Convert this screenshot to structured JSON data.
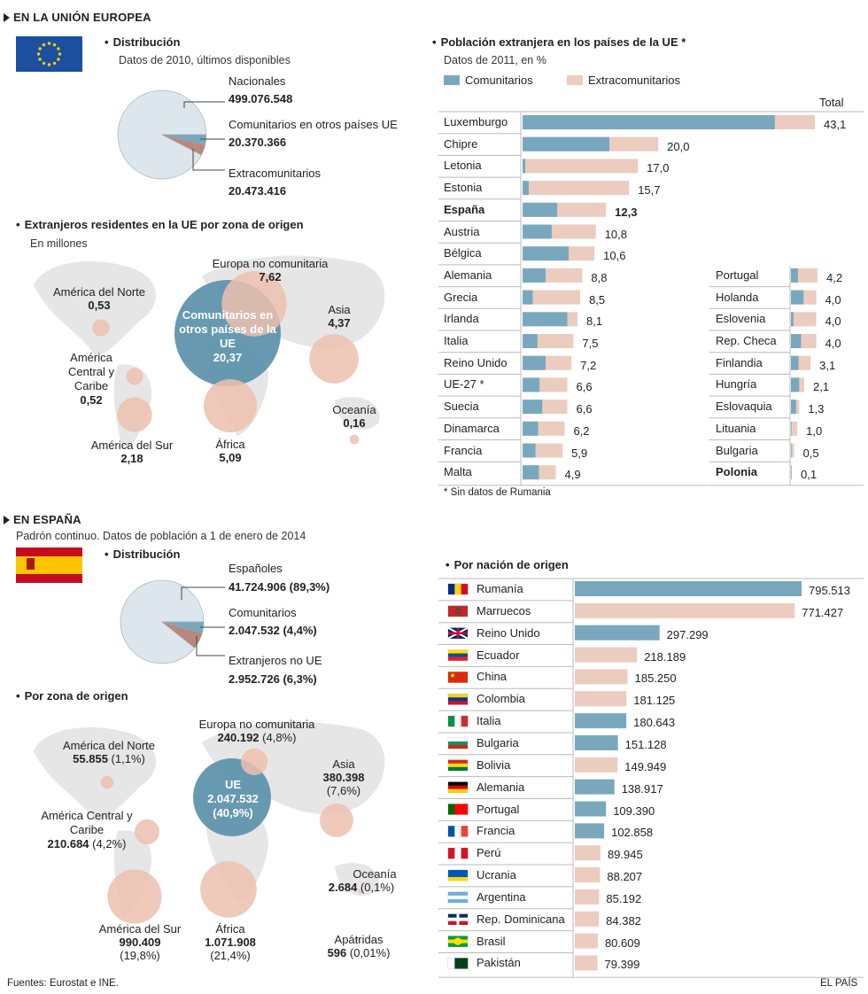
{
  "colors": {
    "comunitarios": "#79a8be",
    "extracomunitarios": "#ecccbf",
    "pie_main": "#dde6ec",
    "pie_dark": "#b9887a",
    "map": "#e6e6e6",
    "circle_blue": "#5f93ad",
    "circle_pink": "#ecbfae"
  },
  "eu": {
    "section_title": "EN LA UNIÓN EUROPEA",
    "flag_icon": "eu-flag-icon",
    "distribution": {
      "title": "Distribución",
      "subtitle": "Datos de 2010, últimos disponibles",
      "labels": [
        {
          "name": "Nacionales",
          "value": "499.076.548"
        },
        {
          "name": "Comunitarios en otros países UE",
          "value": "20.370.366"
        },
        {
          "name": "Extracomunitarios",
          "value": "20.473.416"
        }
      ],
      "slices": [
        499.076548,
        20.370366,
        20.473416
      ]
    },
    "residents": {
      "title": "Extranjeros residentes en la UE por zona de origen",
      "subtitle": "En millones",
      "zones": [
        {
          "name": "Comunitarios en otros países de la UE",
          "value": "20,37",
          "num": 20.37
        },
        {
          "name": "Europa no comunitaria",
          "value": "7,62",
          "num": 7.62
        },
        {
          "name": "América del Norte",
          "value": "0,53",
          "num": 0.53
        },
        {
          "name": "Asia",
          "value": "4,37",
          "num": 4.37
        },
        {
          "name": "América Central y Caribe",
          "value": "0,52",
          "num": 0.52
        },
        {
          "name": "Oceanía",
          "value": "0,16",
          "num": 0.16
        },
        {
          "name": "América del Sur",
          "value": "2,18",
          "num": 2.18
        },
        {
          "name": "África",
          "value": "5,09",
          "num": 5.09
        }
      ]
    }
  },
  "chart_data": [
    {
      "type": "bar",
      "title": "Población extranjera en los países de la UE *",
      "subtitle": "Datos de 2011, en %",
      "legend": [
        "Comunitarios",
        "Extracomunitarios"
      ],
      "total_label": "Total",
      "footnote": "* Sin datos de Rumania",
      "left_column": [
        {
          "country": "Luxemburgo",
          "total": "43,1",
          "value": 43.1,
          "comunitarios": 37.2
        },
        {
          "country": "Chipre",
          "total": "20,0",
          "value": 20.0,
          "comunitarios": 12.8
        },
        {
          "country": "Letonia",
          "total": "17,0",
          "value": 17.0,
          "comunitarios": 0.4
        },
        {
          "country": "Estonia",
          "total": "15,7",
          "value": 15.7,
          "comunitarios": 0.9
        },
        {
          "country": "España",
          "total": "12,3",
          "value": 12.3,
          "comunitarios": 5.1,
          "highlight": true
        },
        {
          "country": "Austria",
          "total": "10,8",
          "value": 10.8,
          "comunitarios": 4.3
        },
        {
          "country": "Bélgica",
          "total": "10,6",
          "value": 10.6,
          "comunitarios": 6.8
        },
        {
          "country": "Alemania",
          "total": "8,8",
          "value": 8.8,
          "comunitarios": 3.4
        },
        {
          "country": "Grecia",
          "total": "8,5",
          "value": 8.5,
          "comunitarios": 1.5
        },
        {
          "country": "Irlanda",
          "total": "8,1",
          "value": 8.1,
          "comunitarios": 6.6
        },
        {
          "country": "Italia",
          "total": "7,5",
          "value": 7.5,
          "comunitarios": 2.2
        },
        {
          "country": "Reino Unido",
          "total": "7,2",
          "value": 7.2,
          "comunitarios": 3.4
        },
        {
          "country": "UE-27 *",
          "total": "6,6",
          "value": 6.6,
          "comunitarios": 2.5
        },
        {
          "country": "Suecia",
          "total": "6,6",
          "value": 6.6,
          "comunitarios": 2.9
        },
        {
          "country": "Dinamarca",
          "total": "6,2",
          "value": 6.2,
          "comunitarios": 2.3
        },
        {
          "country": "Francia",
          "total": "5,9",
          "value": 5.9,
          "comunitarios": 1.9
        },
        {
          "country": "Malta",
          "total": "4,9",
          "value": 4.9,
          "comunitarios": 2.4
        }
      ],
      "right_column": [
        {
          "country": "Portugal",
          "total": "4,2",
          "value": 4.2,
          "comunitarios": 1.1
        },
        {
          "country": "Holanda",
          "total": "4,0",
          "value": 4.0,
          "comunitarios": 2.0
        },
        {
          "country": "Eslovenia",
          "total": "4,0",
          "value": 4.0,
          "comunitarios": 0.4
        },
        {
          "country": "Rep. Checa",
          "total": "4,0",
          "value": 4.0,
          "comunitarios": 1.6
        },
        {
          "country": "Finlandia",
          "total": "3,1",
          "value": 3.1,
          "comunitarios": 1.2
        },
        {
          "country": "Hungría",
          "total": "2,1",
          "value": 2.1,
          "comunitarios": 1.3
        },
        {
          "country": "Eslovaquia",
          "total": "1,3",
          "value": 1.3,
          "comunitarios": 0.8
        },
        {
          "country": "Lituania",
          "total": "1,0",
          "value": 1.0,
          "comunitarios": 0.1
        },
        {
          "country": "Bulgaria",
          "total": "0,5",
          "value": 0.5,
          "comunitarios": 0.1
        },
        {
          "country": "Polonia",
          "total": "0,1",
          "value": 0.1,
          "comunitarios": 0.05,
          "highlight": true
        }
      ]
    },
    {
      "type": "bar",
      "title": "Por nación de origen",
      "countries": [
        {
          "country": "Rumanía",
          "value_text": "795.513",
          "value": 795513,
          "group": "eu",
          "flag": "romania-flag-icon"
        },
        {
          "country": "Marruecos",
          "value_text": "771.427",
          "value": 771427,
          "group": "non-eu",
          "flag": "morocco-flag-icon"
        },
        {
          "country": "Reino Unido",
          "value_text": "297.299",
          "value": 297299,
          "group": "eu",
          "flag": "uk-flag-icon"
        },
        {
          "country": "Ecuador",
          "value_text": "218.189",
          "value": 218189,
          "group": "non-eu",
          "flag": "ecuador-flag-icon"
        },
        {
          "country": "China",
          "value_text": "185.250",
          "value": 185250,
          "group": "non-eu",
          "flag": "china-flag-icon"
        },
        {
          "country": "Colombia",
          "value_text": "181.125",
          "value": 181125,
          "group": "non-eu",
          "flag": "colombia-flag-icon"
        },
        {
          "country": "Italia",
          "value_text": "180.643",
          "value": 180643,
          "group": "eu",
          "flag": "italy-flag-icon"
        },
        {
          "country": "Bulgaria",
          "value_text": "151.128",
          "value": 151128,
          "group": "eu",
          "flag": "bulgaria-flag-icon"
        },
        {
          "country": "Bolivia",
          "value_text": "149.949",
          "value": 149949,
          "group": "non-eu",
          "flag": "bolivia-flag-icon"
        },
        {
          "country": "Alemania",
          "value_text": "138.917",
          "value": 138917,
          "group": "eu",
          "flag": "germany-flag-icon"
        },
        {
          "country": "Portugal",
          "value_text": "109.390",
          "value": 109390,
          "group": "eu",
          "flag": "portugal-flag-icon"
        },
        {
          "country": "Francia",
          "value_text": "102.858",
          "value": 102858,
          "group": "eu",
          "flag": "france-flag-icon"
        },
        {
          "country": "Perú",
          "value_text": "89.945",
          "value": 89945,
          "group": "non-eu",
          "flag": "peru-flag-icon"
        },
        {
          "country": "Ucrania",
          "value_text": "88.207",
          "value": 88207,
          "group": "non-eu",
          "flag": "ukraine-flag-icon"
        },
        {
          "country": "Argentina",
          "value_text": "85.192",
          "value": 85192,
          "group": "non-eu",
          "flag": "argentina-flag-icon"
        },
        {
          "country": "Rep. Dominicana",
          "value_text": "84.382",
          "value": 84382,
          "group": "non-eu",
          "flag": "dominican-flag-icon"
        },
        {
          "country": "Brasil",
          "value_text": "80.609",
          "value": 80609,
          "group": "non-eu",
          "flag": "brazil-flag-icon"
        },
        {
          "country": "Pakistán",
          "value_text": "79.399",
          "value": 79399,
          "group": "non-eu",
          "flag": "pakistan-flag-icon"
        }
      ]
    }
  ],
  "es": {
    "section_title": "EN ESPAÑA",
    "subtitle": "Padrón continuo. Datos de población a 1 de enero de 2014",
    "flag_icon": "spain-flag-icon",
    "distribution": {
      "title": "Distribución",
      "labels": [
        {
          "name": "Españoles",
          "value": "41.724.906 (89,3%)"
        },
        {
          "name": "Comunitarios",
          "value": "2.047.532 (4,4%)"
        },
        {
          "name": "Extranjeros no UE",
          "value": "2.952.726 (6,3%)"
        }
      ],
      "slices": [
        89.3,
        4.4,
        6.3
      ]
    },
    "zones": {
      "title": "Por zona de origen",
      "items": [
        {
          "name": "UE",
          "value": "2.047.532",
          "pct": "(40,9%)",
          "num": 2047532
        },
        {
          "name": "Europa no comunitaria",
          "value": "240.192",
          "pct": "(4,8%)",
          "num": 240192
        },
        {
          "name": "América del Norte",
          "value": "55.855",
          "pct": "(1,1%)",
          "num": 55855
        },
        {
          "name": "Asia",
          "value": "380.398",
          "pct": "(7,6%)",
          "num": 380398
        },
        {
          "name": "América Central y Caribe",
          "value": "210.684",
          "pct": "(4,2%)",
          "num": 210684
        },
        {
          "name": "Oceanía",
          "value": "2.684",
          "pct": "(0,1%)",
          "num": 2684
        },
        {
          "name": "América del Sur",
          "value": "990.409",
          "pct": "(19,8%)",
          "num": 990409
        },
        {
          "name": "África",
          "value": "1.071.908",
          "pct": "(21,4%)",
          "num": 1071908
        },
        {
          "name": "Apátridas",
          "value": "596",
          "pct": "(0,01%)",
          "num": 596
        }
      ]
    }
  },
  "footer": {
    "sources": "Fuentes: Eurostat e INE.",
    "brand": "EL PAÍS"
  }
}
